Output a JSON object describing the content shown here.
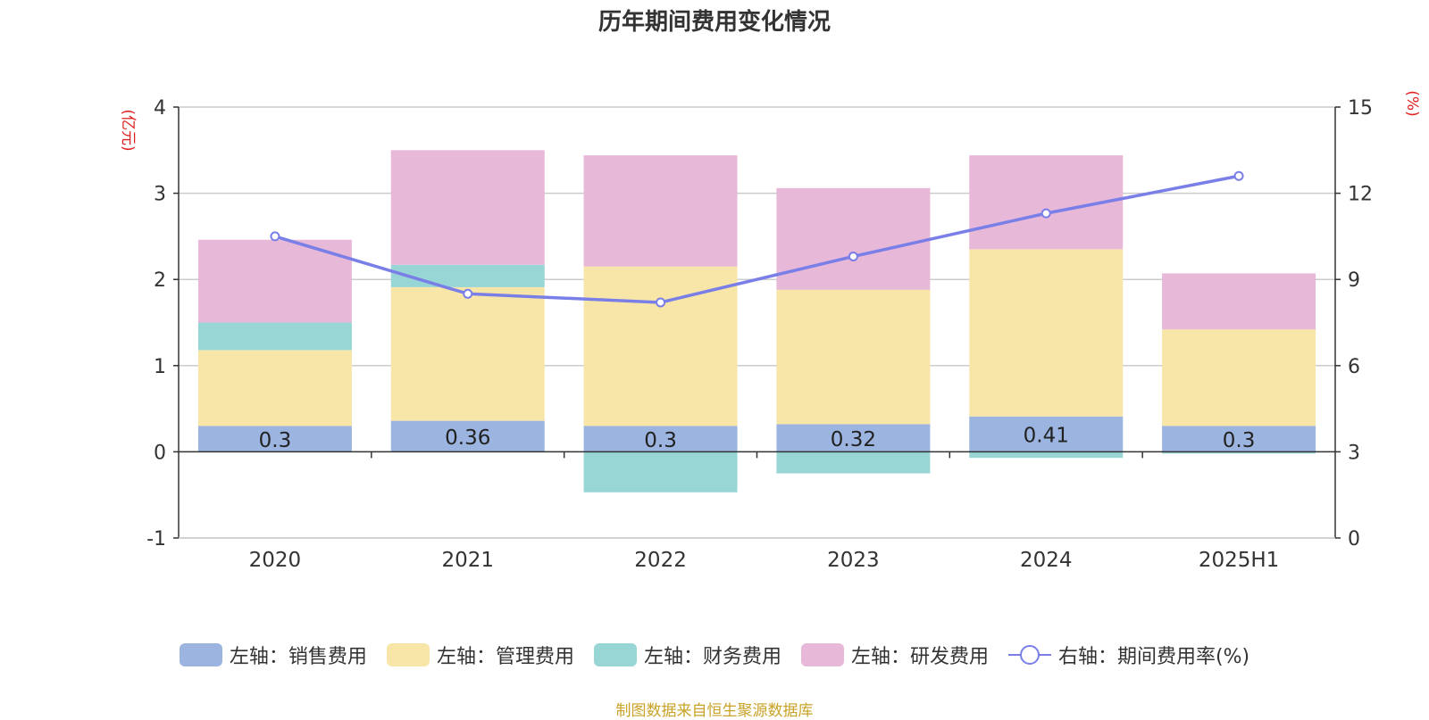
{
  "title": "历年期间费用变化情况",
  "source": "制图数据来自恒生聚源数据库",
  "chart_data": {
    "type": "bar",
    "stacked": true,
    "categories": [
      "2020",
      "2021",
      "2022",
      "2023",
      "2024",
      "2025H1"
    ],
    "y_left": {
      "label": "(亿元)",
      "min": -1,
      "max": 4,
      "ticks": [
        -1,
        0,
        1,
        2,
        3,
        4
      ]
    },
    "y_right": {
      "label": "(%)",
      "min": 0,
      "max": 15,
      "ticks": [
        0,
        3,
        6,
        9,
        12,
        15
      ]
    },
    "series": [
      {
        "name": "左轴：销售费用",
        "color": "#9bb5e0",
        "values": [
          0.3,
          0.36,
          0.3,
          0.32,
          0.41,
          0.3
        ],
        "labels": [
          "0.3",
          "0.36",
          "0.3",
          "0.32",
          "0.41",
          "0.3"
        ]
      },
      {
        "name": "左轴：管理费用",
        "color": "#f8e6a8",
        "values": [
          0.88,
          1.55,
          1.85,
          1.56,
          1.94,
          1.12
        ]
      },
      {
        "name": "左轴：财务费用",
        "color": "#98d5d5",
        "values": [
          0.32,
          0.26,
          -0.47,
          -0.25,
          -0.07,
          -0.02
        ]
      },
      {
        "name": "左轴：研发费用",
        "color": "#e8b8d8",
        "values": [
          0.96,
          1.33,
          1.29,
          1.18,
          1.09,
          0.65
        ]
      }
    ],
    "line": {
      "name": "右轴：期间费用率(%)",
      "color": "#7a7fe8",
      "values": [
        10.5,
        8.5,
        8.2,
        9.8,
        11.3,
        12.6
      ]
    },
    "grid": true
  }
}
